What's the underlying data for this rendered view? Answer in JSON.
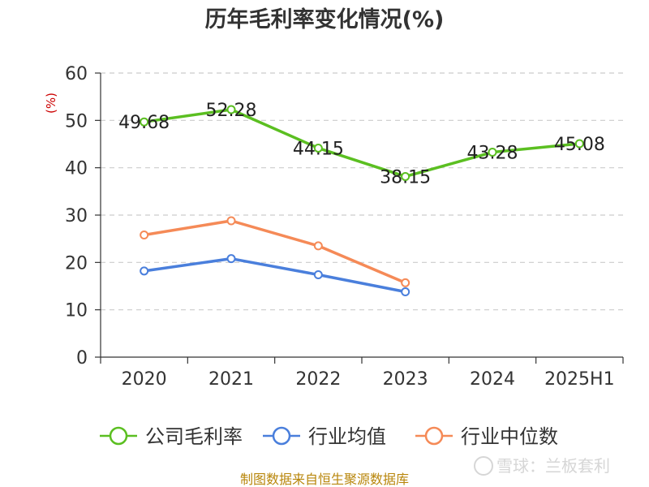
{
  "chart_data": {
    "type": "line",
    "title": "历年毛利率变化情况(%)",
    "ylabel": "(%)",
    "xlabel": "",
    "categories": [
      "2020",
      "2021",
      "2022",
      "2023",
      "2024",
      "2025H1"
    ],
    "ylim": [
      0,
      60
    ],
    "yticks": [
      0,
      10,
      20,
      30,
      40,
      50,
      60
    ],
    "grid": true,
    "legend_position": "bottom",
    "series": [
      {
        "name": "公司毛利率",
        "color": "#5bbf21",
        "values": [
          49.68,
          52.28,
          44.15,
          38.15,
          43.28,
          45.08
        ],
        "labels": [
          "49.68",
          "52.28",
          "44.15",
          "38.15",
          "43.28",
          "45.08"
        ]
      },
      {
        "name": "行业均值",
        "color": "#4a7fdc",
        "values": [
          18.2,
          20.8,
          17.4,
          13.8,
          null,
          null
        ]
      },
      {
        "name": "行业中位数",
        "color": "#f58a57",
        "values": [
          25.8,
          28.8,
          23.5,
          15.7,
          null,
          null
        ]
      }
    ]
  },
  "footer": {
    "source": "制图数据来自恒生聚源数据库",
    "source_color": "#b8860b",
    "watermark": "雪球：兰板套利"
  },
  "colors": {
    "unit": "#cc0000",
    "axis": "#333333",
    "grid": "#cccccc"
  }
}
